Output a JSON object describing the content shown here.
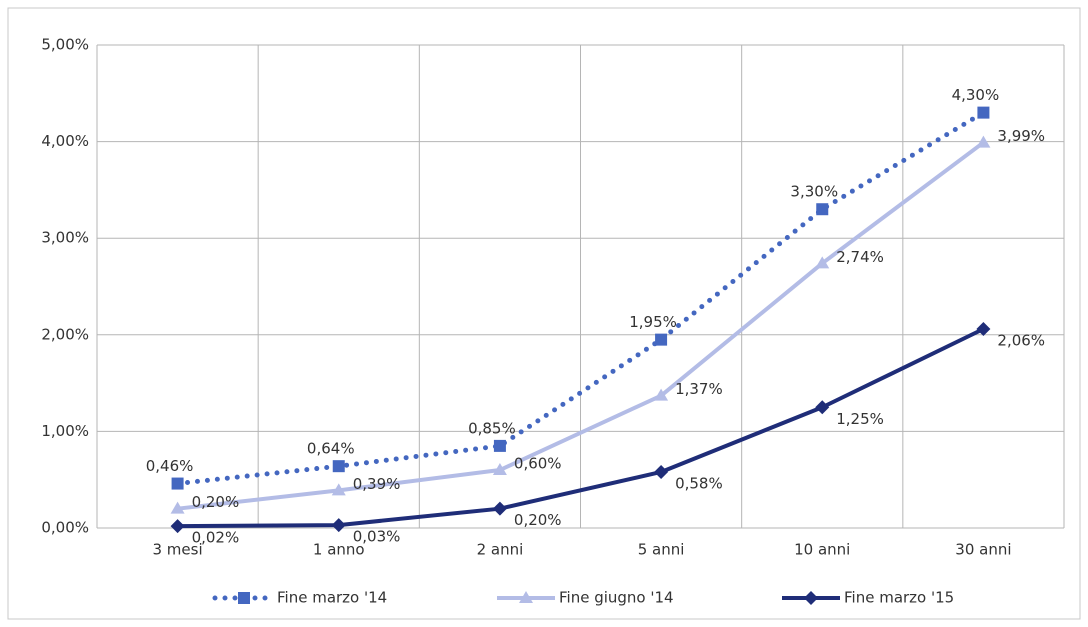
{
  "chart_data": {
    "type": "line",
    "categories": [
      "3 mesi",
      "1 anno",
      "2 anni",
      "5 anni",
      "10 anni",
      "30 anni"
    ],
    "series": [
      {
        "name": "Fine marzo '14",
        "color": "#4467c0",
        "linestyle": "dotted",
        "marker": "square",
        "values": [
          0.46,
          0.64,
          0.85,
          1.95,
          3.3,
          4.3
        ],
        "value_labels": [
          "0,46%",
          "0,64%",
          "0,85%",
          "1,95%",
          "3,30%",
          "4,30%"
        ]
      },
      {
        "name": "Fine giugno '14",
        "color": "#b3bce6",
        "linestyle": "solid",
        "marker": "triangle",
        "values": [
          0.2,
          0.39,
          0.6,
          1.37,
          2.74,
          3.99
        ],
        "value_labels": [
          "0,20%",
          "0,39%",
          "0,60%",
          "1,37%",
          "2,74%",
          "3,99%"
        ]
      },
      {
        "name": "Fine marzo '15",
        "color": "#1f2d78",
        "linestyle": "solid",
        "marker": "diamond",
        "values": [
          0.02,
          0.03,
          0.2,
          0.58,
          1.25,
          2.06
        ],
        "value_labels": [
          "0,02%",
          "0,03%",
          "0,20%",
          "0,58%",
          "1,25%",
          "2,06%"
        ]
      }
    ],
    "ylim": [
      0,
      5
    ],
    "yticks": [
      {
        "value": 0,
        "label": "0,00%"
      },
      {
        "value": 1,
        "label": "1,00%"
      },
      {
        "value": 2,
        "label": "2,00%"
      },
      {
        "value": 3,
        "label": "3,00%"
      },
      {
        "value": 4,
        "label": "4,00%"
      },
      {
        "value": 5,
        "label": "5,00%"
      }
    ],
    "grid": true,
    "legend": "bottom"
  }
}
